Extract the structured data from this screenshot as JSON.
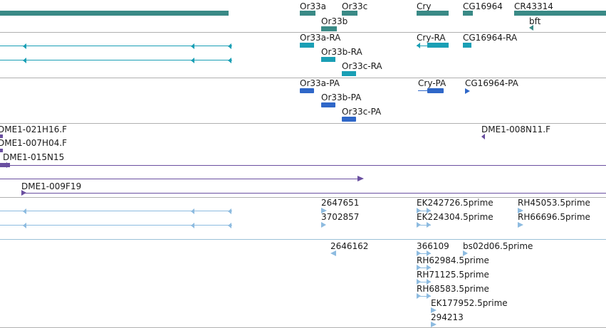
{
  "colors": {
    "gene": "#3a8a86",
    "transcript": "#1a9fb5",
    "cds": "#2f67c8",
    "clone": "#6a4fa0",
    "est": "#8dbbe0",
    "divider_gray": "#b0b0b0",
    "divider_blue": "#9ac0d8"
  },
  "tracks": {
    "genes": {
      "labels": {
        "or33a": "Or33a",
        "or33b": "Or33b",
        "or33c": "Or33c",
        "cry": "Cry",
        "cg16964": "CG16964",
        "cr43314": "CR43314",
        "bft": "bft"
      }
    },
    "transcripts": {
      "labels": {
        "or33a_ra": "Or33a-RA",
        "or33b_ra": "Or33b-RA",
        "or33c_ra": "Or33c-RA",
        "cry_ra": "Cry-RA",
        "cg16964_ra": "CG16964-RA"
      }
    },
    "cds": {
      "labels": {
        "or33a_pa": "Or33a-PA",
        "or33b_pa": "Or33b-PA",
        "or33c_pa": "Or33c-PA",
        "cry_pa": "Cry-PA",
        "cg16964_pa": "CG16964-PA"
      }
    },
    "clones": {
      "labels": {
        "dme1_021h16": "DME1-021H16.F",
        "dme1_007h04": "DME1-007H04.F",
        "dme1_015n15": "DME1-015N15",
        "dme1_009f19": "DME1-009F19",
        "dme1_008n11": "DME1-008N11.F"
      }
    },
    "ests_a": {
      "labels": {
        "e2647651": "2647651",
        "e3702857": "3702857",
        "ek242726": "EK242726.5prime",
        "ek224304": "EK224304.5prime",
        "rh45053": "RH45053.5prime",
        "rh66696": "RH66696.5prime"
      }
    },
    "ests_b": {
      "labels": {
        "e2646162": "2646162",
        "e366109": "366109",
        "bs02d06": "bs02d06.5prime",
        "rh62984": "RH62984.5prime",
        "rh71125": "RH71125.5prime",
        "rh68583": "RH68583.5prime",
        "ek177952": "EK177952.5prime",
        "e294213": "294213"
      }
    }
  }
}
